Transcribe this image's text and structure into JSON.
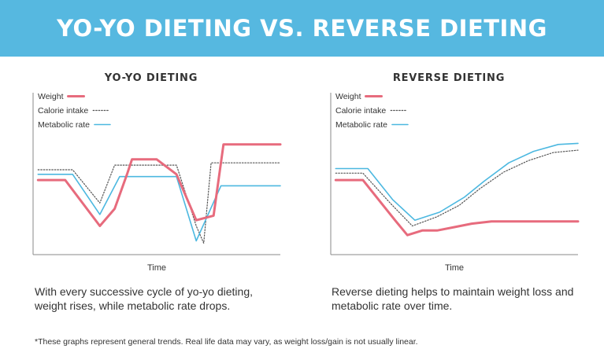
{
  "header": {
    "title": "YO-YO DIETING VS. REVERSE DIETING"
  },
  "chart_data": [
    {
      "type": "line",
      "title": "YO-YO DIETING",
      "xlabel": "Time",
      "ylabel": "",
      "xlim": [
        0,
        100
      ],
      "ylim": [
        0,
        100
      ],
      "grid": false,
      "legend_position": "top-left",
      "legend": [
        "Weight",
        "Calorie intake",
        "Metabolic rate"
      ],
      "series": [
        {
          "name": "Weight",
          "color": "#e76b7d",
          "style": "solid",
          "x": [
            2,
            13,
            27,
            33,
            38,
            40,
            50,
            58,
            66,
            73,
            77,
            100
          ],
          "y": [
            65,
            65,
            25,
            40,
            70,
            83,
            83,
            70,
            30,
            34,
            96,
            96
          ]
        },
        {
          "name": "Calorie intake",
          "color": "#555555",
          "style": "dotted",
          "x": [
            2,
            16,
            27,
            33,
            58,
            66,
            69,
            72,
            75,
            100
          ],
          "y": [
            74,
            74,
            45,
            78,
            78,
            25,
            10,
            80,
            80,
            80
          ]
        },
        {
          "name": "Metabolic rate",
          "color": "#4cb8e0",
          "style": "solid",
          "x": [
            2,
            16,
            27,
            35,
            58,
            66,
            76,
            100
          ],
          "y": [
            70,
            70,
            35,
            68,
            68,
            12,
            60,
            60
          ]
        }
      ]
    },
    {
      "type": "line",
      "title": "REVERSE DIETING",
      "xlabel": "Time",
      "ylabel": "",
      "xlim": [
        0,
        100
      ],
      "ylim": [
        0,
        100
      ],
      "grid": false,
      "legend_position": "top-left",
      "legend": [
        "Weight",
        "Calorie intake",
        "Metabolic rate"
      ],
      "series": [
        {
          "name": "Weight",
          "color": "#e76b7d",
          "style": "solid",
          "x": [
            2,
            13,
            26,
            31,
            37,
            43,
            50,
            57,
            65,
            72,
            100
          ],
          "y": [
            65,
            65,
            30,
            17,
            21,
            21,
            24,
            27,
            29,
            29,
            29
          ]
        },
        {
          "name": "Calorie intake",
          "color": "#555555",
          "style": "dotted",
          "x": [
            2,
            13,
            24,
            33,
            43,
            52,
            60,
            70,
            80,
            90,
            100
          ],
          "y": [
            71,
            71,
            45,
            25,
            33,
            43,
            57,
            72,
            82,
            89,
            91
          ]
        },
        {
          "name": "Metabolic rate",
          "color": "#4cb8e0",
          "style": "solid",
          "x": [
            2,
            15,
            25,
            34,
            44,
            54,
            62,
            72,
            82,
            92,
            100
          ],
          "y": [
            75,
            75,
            48,
            30,
            37,
            50,
            64,
            80,
            90,
            96,
            97
          ]
        }
      ]
    }
  ],
  "captions": [
    "With every successive cycle of yo-yo dieting, weight rises, while metabolic rate drops.",
    "Reverse dieting helps to maintain weight loss and metabolic rate over time."
  ],
  "footnote": "*These graphs represent general trends. Real life data may vary, as weight loss/gain is not usually linear."
}
